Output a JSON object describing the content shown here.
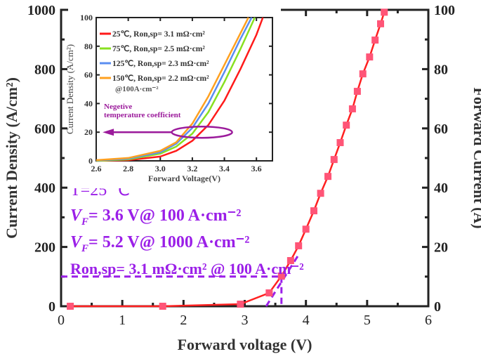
{
  "chart_data": [
    {
      "type": "line",
      "xlabel": "Forward voltage (V)",
      "ylabel": "Current Density (A/cm²)",
      "y2label": "Forward Current (A)",
      "xlim": [
        0,
        6
      ],
      "ylim": [
        0,
        1000
      ],
      "y2lim": [
        0,
        100
      ],
      "xticks": [
        "0",
        "1",
        "2",
        "3",
        "4",
        "5",
        "6"
      ],
      "yticks": [
        "0",
        "200",
        "400",
        "600",
        "800",
        "1000"
      ],
      "y2ticks": [
        "0",
        "20",
        "40",
        "60",
        "80",
        "100"
      ],
      "grid": false,
      "series": [
        {
          "color": "#ff2020",
          "marker_color": "#ff5577",
          "x": [
            0.15,
            1.66,
            2.93,
            3.4,
            3.6,
            3.75,
            3.88,
            4.0,
            4.13,
            4.24,
            4.36,
            4.46,
            4.56,
            4.66,
            4.76,
            4.84,
            4.93,
            5.04,
            5.13,
            5.22,
            5.28
          ],
          "y": [
            0,
            0,
            7,
            45,
            102,
            154,
            204,
            260,
            322,
            381,
            438,
            495,
            552,
            611,
            666,
            725,
            784,
            841,
            898,
            953,
            992
          ]
        }
      ],
      "annotations": {
        "temp": "T=25 ℃",
        "vf1": "VF= 3.6 V@ 100 A·cm⁻²",
        "vf2": "VF= 5.2 V@ 1000 A·cm⁻²",
        "ron": "Ron,sp= 3.1 mΩ·cm² @ 100 A·cm⁻²",
        "color": "#9b1fe8",
        "ref_voltage": 3.6,
        "ref_density": 100,
        "tangent": [
          [
            3.35,
            0
          ],
          [
            3.9,
            180
          ]
        ]
      }
    },
    {
      "type": "line",
      "xlabel": "Forward Voltage(V)",
      "ylabel": "Current Density (A/cm²)",
      "xlim": [
        2.6,
        3.7
      ],
      "ylim": [
        0,
        100
      ],
      "xticks": [
        "2.6",
        "2.8",
        "3.0",
        "3.2",
        "3.4",
        "3.6"
      ],
      "yticks": [
        "0",
        "20",
        "40",
        "60",
        "80",
        "100"
      ],
      "legend_position": "top-left",
      "legend_note": "@100A·cm⁻²",
      "series": [
        {
          "name": "25℃, Ron,sp= 3.1 mΩ·cm²",
          "color": "#ff1a1a",
          "x": [
            2.6,
            2.8,
            3.0,
            3.1,
            3.2,
            3.3,
            3.4,
            3.5,
            3.6,
            3.64
          ],
          "y": [
            0,
            0.5,
            3,
            7,
            14,
            25,
            42,
            64,
            88,
            100
          ]
        },
        {
          "name": "75℃, Ron,sp= 2.5 mΩ·cm²",
          "color": "#88e020",
          "x": [
            2.6,
            2.8,
            3.0,
            3.1,
            3.2,
            3.3,
            3.4,
            3.5,
            3.59
          ],
          "y": [
            0,
            1,
            5,
            10,
            19,
            34,
            55,
            78,
            100
          ]
        },
        {
          "name": "125℃, Ron,sp= 2.3 mΩ·cm²",
          "color": "#5b8ef0",
          "x": [
            2.6,
            2.8,
            3.0,
            3.1,
            3.2,
            3.3,
            3.4,
            3.5,
            3.57
          ],
          "y": [
            0.3,
            1.5,
            6,
            12,
            23,
            40,
            62,
            85,
            100
          ]
        },
        {
          "name": "150℃, Ron,sp= 2.2 mΩ·cm²",
          "color": "#ffa020",
          "x": [
            2.6,
            2.8,
            3.0,
            3.1,
            3.2,
            3.3,
            3.4,
            3.5,
            3.55
          ],
          "y": [
            0.5,
            2,
            7,
            13,
            26,
            45,
            67,
            89,
            100
          ]
        }
      ],
      "annotation": {
        "text1": "Negetive",
        "text2": "temperature coefficient",
        "color": "#9b1a9b"
      }
    }
  ]
}
